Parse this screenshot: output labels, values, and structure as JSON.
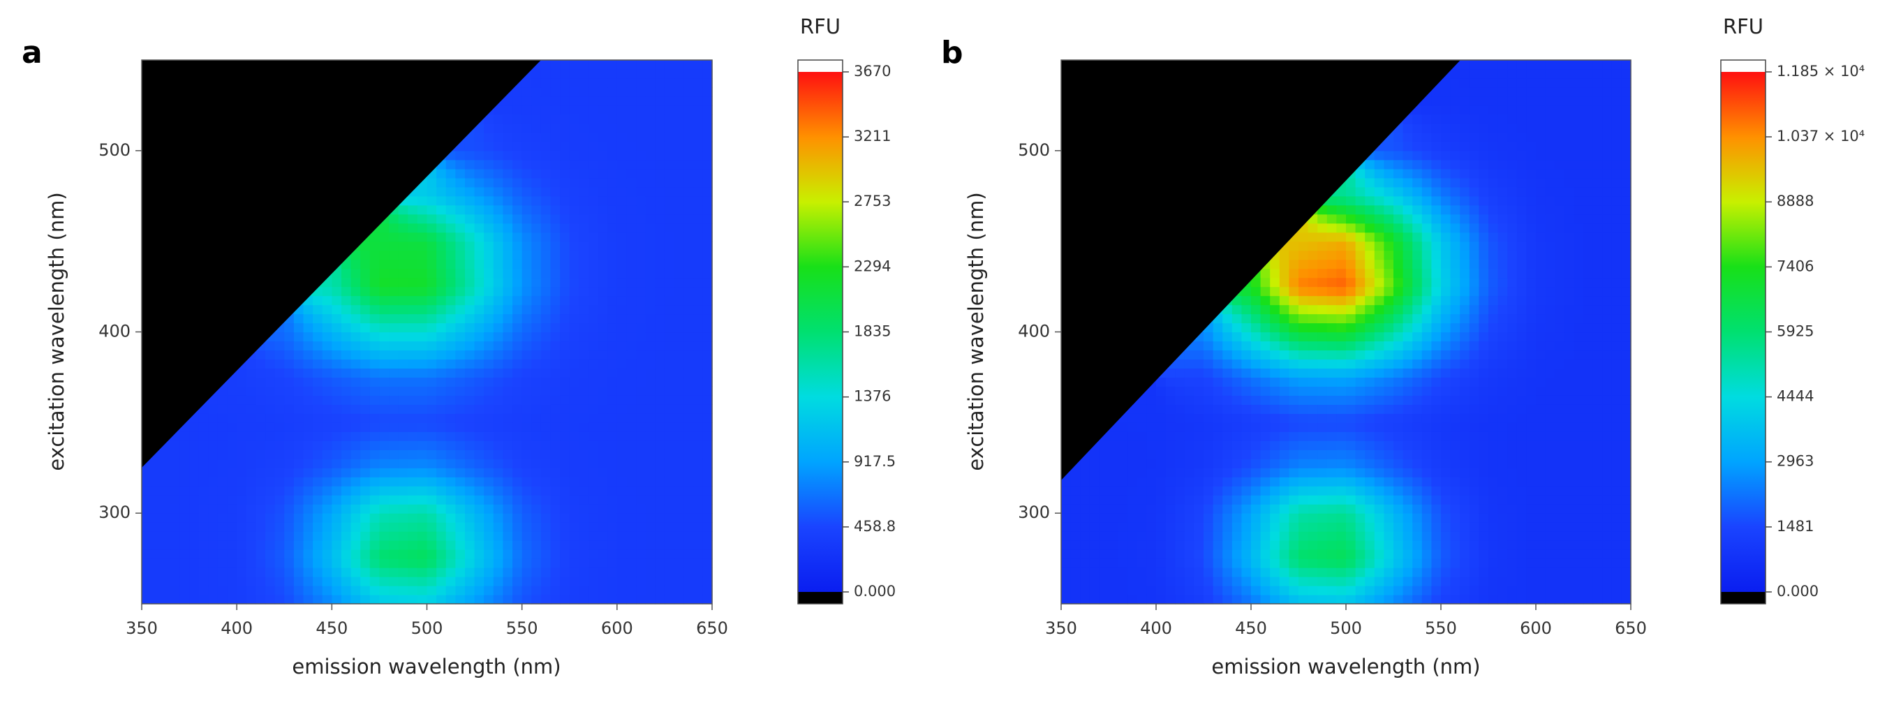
{
  "chart_data": [
    {
      "type": "contour",
      "panel_label": "a",
      "x_label": "emission wavelength (nm)",
      "y_label": "excitation wavelength (nm)",
      "colorbar_title": "RFU",
      "x": [
        350,
        375,
        400,
        425,
        450,
        475,
        500,
        525,
        550,
        575,
        600,
        625,
        650
      ],
      "y": [
        250,
        275,
        300,
        325,
        350,
        375,
        400,
        425,
        450,
        475,
        500,
        525,
        550
      ],
      "z": [
        [
          350,
          352,
          369,
          479,
          789,
          1208,
          1264,
          877,
          526,
          383,
          353,
          350,
          350
        ],
        [
          350,
          353,
          383,
          576,
          1116,
          1847,
          1944,
          1270,
          658,
          407,
          355,
          350,
          350
        ],
        [
          350,
          353,
          376,
          528,
          955,
          1532,
          1609,
          1077,
          593,
          395,
          354,
          350,
          350
        ],
        [
          350,
          351,
          359,
          416,
          571,
          779,
          807,
          614,
          439,
          366,
          351,
          350,
          350
        ],
        [
          null,
          351,
          356,
          376,
          421,
          473,
          477,
          427,
          379,
          357,
          351,
          350,
          350
        ],
        [
          null,
          null,
          376,
          444,
          571,
          687,
          686,
          566,
          439,
          374,
          354,
          350,
          350
        ],
        [
          null,
          null,
          null,
          649,
          1055,
          1422,
          1415,
          1035,
          634,
          427,
          364,
          351,
          350
        ],
        [
          null,
          null,
          null,
          null,
          1571,
          2206,
          2195,
          1536,
          842,
          483,
          373,
          352,
          350
        ],
        [
          null,
          null,
          null,
          null,
          null,
          2093,
          2082,
          1464,
          812,
          475,
          372,
          352,
          350
        ],
        [
          null,
          null,
          null,
          null,
          null,
          null,
          1236,
          920,
          587,
          414,
          361,
          351,
          350
        ],
        [
          null,
          null,
          null,
          null,
          null,
          null,
          null,
          508,
          416,
          368,
          353,
          350,
          350
        ],
        [
          null,
          null,
          null,
          null,
          null,
          null,
          null,
          null,
          360,
          353,
          350,
          350,
          350
        ],
        [
          null,
          null,
          null,
          null,
          null,
          null,
          null,
          null,
          null,
          350,
          350,
          350,
          350
        ]
      ],
      "xlim": [
        350,
        650
      ],
      "xticks": [
        350,
        400,
        450,
        500,
        550,
        600,
        650
      ],
      "ylim": [
        250,
        550
      ],
      "yticks": [
        300,
        400,
        500
      ],
      "zlim": [
        0,
        3670
      ],
      "zticks": [
        {
          "value": 0,
          "label": "0.000"
        },
        458.8,
        917.5,
        1376,
        1835,
        2294,
        2753,
        3211,
        3670
      ],
      "colorscale": [
        "#0a1ef0",
        "#1a44ff",
        "#00a4ff",
        "#00dce0",
        "#00e070",
        "#18e018",
        "#c8f000",
        "#ff9000",
        "#ff1010"
      ],
      "mask_color": "#000000"
    },
    {
      "type": "contour",
      "panel_label": "b",
      "x_label": "emission wavelength (nm)",
      "y_label": "excitation wavelength (nm)",
      "colorbar_title": "RFU",
      "x": [
        350,
        375,
        400,
        425,
        450,
        475,
        500,
        525,
        550,
        575,
        600,
        625,
        650
      ],
      "y": [
        250,
        275,
        300,
        325,
        350,
        375,
        400,
        425,
        450,
        475,
        500,
        525,
        550
      ],
      "z": [
        [
          800,
          806,
          862,
          1221,
          2229,
          3592,
          3773,
          2516,
          1374,
          906,
          809,
          800,
          800
        ],
        [
          800,
          812,
          916,
          1586,
          3466,
          6009,
          6346,
          4001,
          1871,
          998,
          817,
          800,
          800
        ],
        [
          800,
          810,
          898,
          1460,
          3040,
          5177,
          5460,
          3490,
          1700,
          966,
          815,
          800,
          800
        ],
        [
          null,
          805,
          841,
          1062,
          1674,
          2493,
          2602,
          1847,
          1156,
          868,
          807,
          800,
          800
        ],
        [
          null,
          null,
          842,
          963,
          1219,
          1502,
          1537,
          1282,
          1005,
          859,
          811,
          801,
          800
        ],
        [
          null,
          null,
          null,
          1417,
          2207,
          2965,
          3052,
          2382,
          1552,
          1043,
          853,
          807,
          800
        ],
        [
          null,
          null,
          null,
          2550,
          4779,
          6910,
          7153,
          5271,
          2931,
          1488,
          951,
          820,
          800
        ],
        [
          null,
          null,
          null,
          null,
          7166,
          10574,
          10962,
          7952,
          4208,
          1901,
          1041,
          831,
          800
        ],
        [
          null,
          null,
          null,
          null,
          null,
          9597,
          9946,
          7237,
          3868,
          1791,
          1017,
          828,
          800
        ],
        [
          null,
          null,
          null,
          null,
          null,
          null,
          5468,
          4085,
          2366,
          1306,
          911,
          814,
          800
        ],
        [
          null,
          null,
          null,
          null,
          null,
          null,
          null,
          1736,
          1246,
          944,
          832,
          804,
          800
        ],
        [
          null,
          null,
          null,
          null,
          null,
          null,
          null,
          null,
          870,
          823,
          805,
          801,
          800
        ],
        [
          null,
          null,
          null,
          null,
          null,
          null,
          null,
          null,
          null,
          802,
          800,
          800,
          800
        ]
      ],
      "xlim": [
        350,
        650
      ],
      "xticks": [
        350,
        400,
        450,
        500,
        550,
        600,
        650
      ],
      "ylim": [
        250,
        550
      ],
      "yticks": [
        300,
        400,
        500
      ],
      "zlim": [
        0,
        11850
      ],
      "zticks": [
        {
          "value": 0,
          "label": "0.000"
        },
        1481,
        2963,
        4444,
        5925,
        7406,
        8888,
        {
          "value": 10370,
          "label": "1.037 × 10⁴"
        },
        {
          "value": 11850,
          "label": "1.185 × 10⁴"
        }
      ],
      "colorscale": [
        "#0a1ef0",
        "#1a44ff",
        "#00a4ff",
        "#00dce0",
        "#00e070",
        "#18e018",
        "#c8f000",
        "#ff9000",
        "#ff1010"
      ],
      "mask_color": "#000000"
    }
  ]
}
